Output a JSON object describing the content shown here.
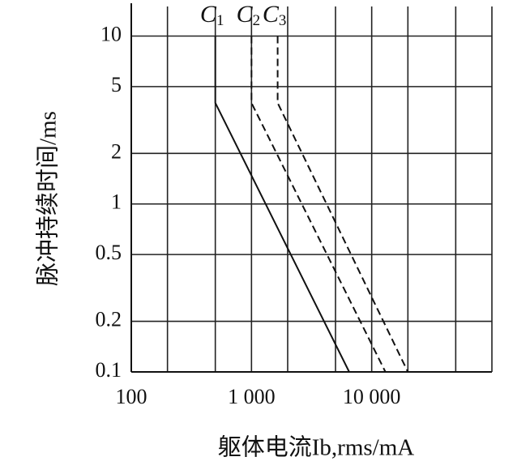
{
  "chart_data": {
    "type": "line",
    "x_label": "躯体电流Ib,rms/mA",
    "y_label": "脉冲持续时间/ms",
    "log_x": true,
    "log_y": true,
    "grid": true,
    "xlim": [
      100,
      100000
    ],
    "ylim": [
      0.1,
      15
    ],
    "xticks": [
      100,
      {
        "value": 1000,
        "label": "1 000"
      },
      {
        "value": 10000,
        "label": "10 000"
      }
    ],
    "x_minor_ticks": [
      200,
      500,
      2000,
      5000,
      20000,
      50000
    ],
    "yticks": [
      0.1,
      0.2,
      0.5,
      1,
      2,
      5,
      10
    ],
    "series": [
      {
        "name": "C1",
        "color": "#111111",
        "dash": false,
        "x": [
          500,
          500,
          6500
        ],
        "values": [
          10,
          4,
          0.1
        ]
      },
      {
        "name": "C2",
        "color": "#111111",
        "dash": true,
        "x": [
          1000,
          1000,
          13000
        ],
        "values": [
          10,
          4,
          0.1
        ]
      },
      {
        "name": "C3",
        "color": "#111111",
        "dash": true,
        "x": [
          1650,
          1650,
          20000
        ],
        "values": [
          10,
          4,
          0.1
        ]
      }
    ]
  }
}
